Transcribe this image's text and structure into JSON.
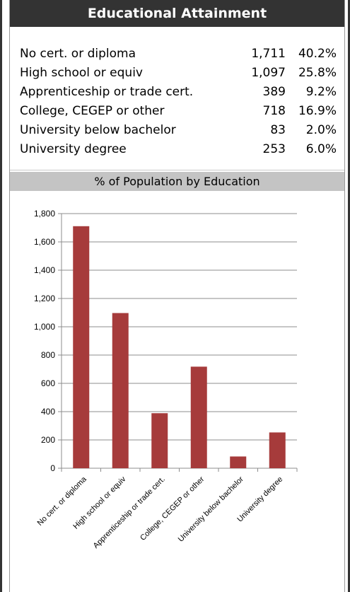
{
  "header": {
    "title": "Educational Attainment"
  },
  "stats": [
    {
      "label": "No cert. or diploma",
      "count": "1,711",
      "pct": "40.2%"
    },
    {
      "label": "High school or equiv",
      "count": "1,097",
      "pct": "25.8%"
    },
    {
      "label": "Apprenticeship or trade cert.",
      "count": "389",
      "pct": "9.2%"
    },
    {
      "label": "College, CEGEP or other",
      "count": "718",
      "pct": "16.9%"
    },
    {
      "label": "University below bachelor",
      "count": "83",
      "pct": "2.0%"
    },
    {
      "label": "University degree",
      "count": "253",
      "pct": "6.0%"
    }
  ],
  "chart_section": {
    "title": "% of Population by Education"
  },
  "chart_data": {
    "type": "bar",
    "categories": [
      "No cert. or diploma",
      "High school or equiv",
      "Apprenticeship or trade cert.",
      "College, CEGEP or other",
      "University below bachelor",
      "University degree"
    ],
    "values": [
      1711,
      1097,
      389,
      718,
      83,
      253
    ],
    "ylim": [
      0,
      1800
    ],
    "yticks": [
      0,
      200,
      400,
      600,
      800,
      1000,
      1200,
      1400,
      1600,
      1800
    ],
    "ytick_labels": [
      "0",
      "200",
      "400",
      "600",
      "800",
      "1,000",
      "1,200",
      "1,400",
      "1,600",
      "1,800"
    ],
    "grid": true,
    "legend": "none",
    "bar_color": "#a63b3b",
    "grid_color": "#8c8c8c"
  }
}
